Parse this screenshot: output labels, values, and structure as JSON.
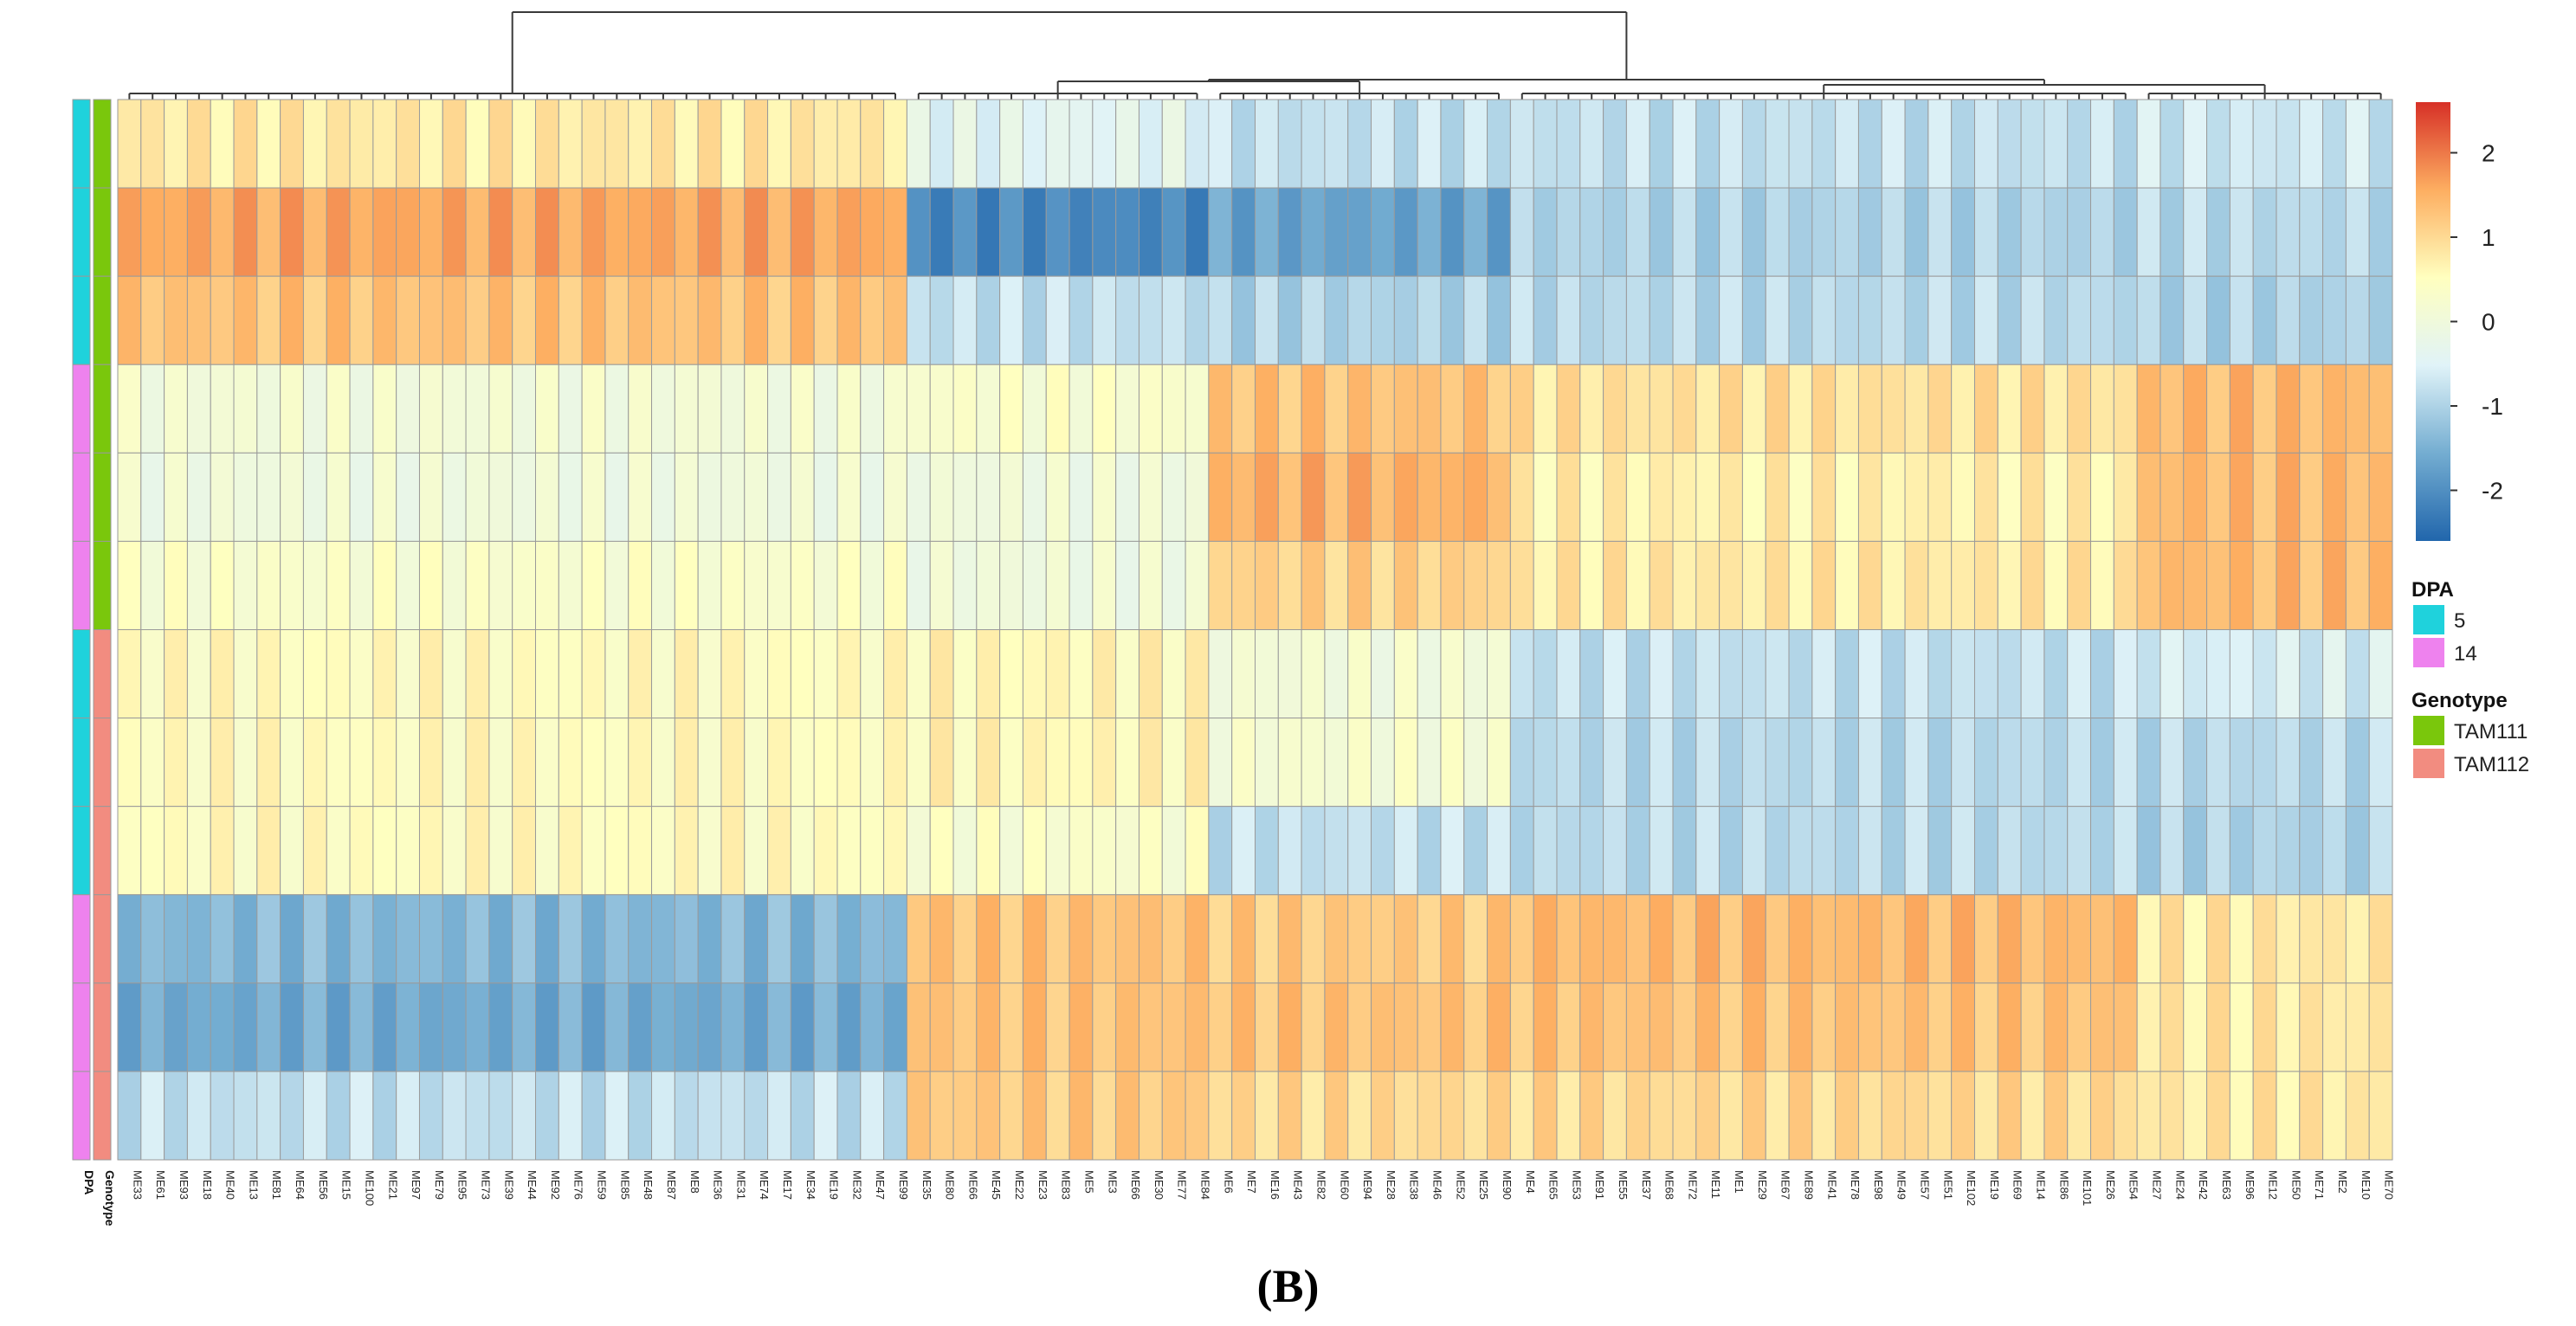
{
  "panel_label": "(B)",
  "chart_data": {
    "type": "heatmap",
    "title": "",
    "columns": [
      "ME33",
      "ME61",
      "ME93",
      "ME18",
      "ME40",
      "ME13",
      "ME81",
      "ME64",
      "ME56",
      "ME15",
      "ME100",
      "ME21",
      "ME97",
      "ME79",
      "ME95",
      "ME73",
      "ME39",
      "ME44",
      "ME92",
      "ME76",
      "ME59",
      "ME85",
      "ME48",
      "ME87",
      "ME8",
      "ME36",
      "ME31",
      "ME74",
      "ME17",
      "ME34",
      "ME19",
      "ME32",
      "ME47",
      "ME99",
      "ME35",
      "ME80",
      "ME66",
      "ME45",
      "ME22",
      "ME23",
      "ME83",
      "ME5",
      "ME3",
      "ME66",
      "ME30",
      "ME77",
      "ME84",
      "ME6",
      "ME7",
      "ME16",
      "ME43",
      "ME82",
      "ME60",
      "ME94",
      "ME28",
      "ME38",
      "ME46",
      "ME52",
      "ME25",
      "ME90",
      "ME4",
      "ME65",
      "ME53",
      "ME91",
      "ME55",
      "ME37",
      "ME68",
      "ME72",
      "ME11",
      "ME1",
      "ME29",
      "ME67",
      "ME89",
      "ME41",
      "ME78",
      "ME98",
      "ME49",
      "ME57",
      "ME51",
      "ME102",
      "ME19",
      "ME69",
      "ME14",
      "ME86",
      "ME101",
      "ME26",
      "ME54",
      "ME27",
      "ME24",
      "ME42",
      "ME63",
      "ME96",
      "ME12",
      "ME50",
      "ME71",
      "ME2",
      "ME10",
      "ME70"
    ],
    "row_annotations": {
      "DPA": [
        "5",
        "5",
        "5",
        "14",
        "14",
        "14",
        "5",
        "5",
        "5",
        "14",
        "14",
        "14"
      ],
      "Genotype": [
        "TAM111",
        "TAM111",
        "TAM111",
        "TAM111",
        "TAM111",
        "TAM111",
        "TAM112",
        "TAM112",
        "TAM112",
        "TAM112",
        "TAM112",
        "TAM112"
      ]
    },
    "column_blocks": [
      {
        "count": 34,
        "row_values": [
          0.8,
          1.6,
          1.3,
          0.1,
          0.0,
          0.3,
          0.5,
          0.5,
          0.5,
          -1.4,
          -1.6,
          -0.8
        ]
      },
      {
        "count": 13,
        "row_values": [
          -0.4,
          -2.1,
          -0.8,
          0.3,
          0.0,
          0.0,
          0.6,
          0.6,
          0.3,
          1.3,
          1.3,
          1.2
        ]
      },
      {
        "count": 13,
        "row_values": [
          -0.8,
          -1.7,
          -1.0,
          1.3,
          1.5,
          1.1,
          0.1,
          0.2,
          -0.8,
          1.2,
          1.3,
          1.0
        ]
      },
      {
        "count": 27,
        "row_values": [
          -0.8,
          -1.0,
          -0.9,
          0.9,
          0.7,
          0.8,
          -0.8,
          -0.9,
          -0.9,
          1.4,
          1.3,
          1.0
        ]
      },
      {
        "count": 11,
        "row_values": [
          -0.7,
          -0.9,
          -1.0,
          1.4,
          1.4,
          1.4,
          -0.6,
          -0.9,
          -1.0,
          0.8,
          0.8,
          0.8
        ]
      }
    ],
    "scale": {
      "min": -2.6,
      "max": 2.6,
      "ticks": [
        2,
        1,
        0,
        -1,
        -2
      ],
      "tick_labels": [
        "2",
        "1",
        "0",
        "-1",
        "-2"
      ],
      "colors": [
        "#2166ac",
        "#74add1",
        "#e0f3f8",
        "#ffffbf",
        "#fdae61",
        "#d73027"
      ]
    },
    "legends": [
      {
        "title": "DPA",
        "items": [
          {
            "label": "5",
            "color": "#1fd2dc"
          },
          {
            "label": "14",
            "color": "#ee82ee"
          }
        ]
      },
      {
        "title": "Genotype",
        "items": [
          {
            "label": "TAM111",
            "color": "#7ac70c"
          },
          {
            "label": "TAM112",
            "color": "#f28c80"
          }
        ]
      }
    ],
    "annotation_labels": [
      "DPA",
      "Genotype"
    ]
  }
}
